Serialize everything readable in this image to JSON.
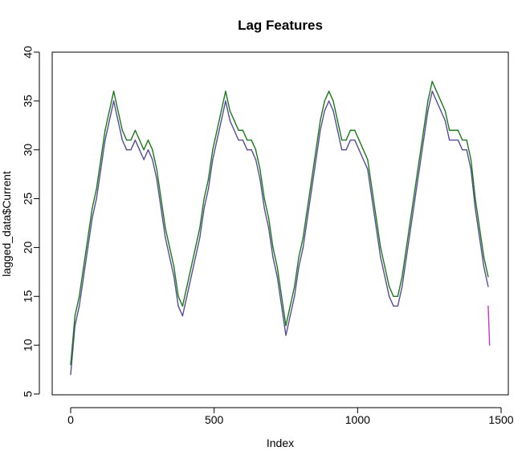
{
  "chart_data": {
    "type": "line",
    "title": "Lag Features",
    "xlabel": "Index",
    "ylabel": "lagged_data$Current",
    "xlim": [
      0,
      1500
    ],
    "ylim": [
      5,
      40
    ],
    "xticks": [
      0,
      500,
      1000,
      1500
    ],
    "yticks": [
      5,
      10,
      15,
      20,
      25,
      30,
      35,
      40
    ],
    "x_tick_labels": [
      "0",
      "500",
      "1000",
      "1500"
    ],
    "y_tick_labels": [
      "5",
      "10",
      "15",
      "20",
      "25",
      "30",
      "35",
      "40"
    ],
    "grid": false,
    "legend": "none",
    "colors": [
      "#5a4a9a",
      "#1a7a1a",
      "#cc33cc"
    ],
    "series": [
      {
        "color": "#5a4a9a",
        "x": [
          0,
          15,
          30,
          45,
          60,
          75,
          90,
          105,
          120,
          135,
          150,
          165,
          180,
          195,
          210,
          225,
          240,
          255,
          270,
          285,
          300,
          315,
          330,
          345,
          360,
          375,
          390,
          405,
          420,
          435,
          450,
          465,
          480,
          495,
          510,
          525,
          540,
          555,
          570,
          585,
          600,
          615,
          630,
          645,
          660,
          675,
          690,
          705,
          720,
          735,
          750,
          765,
          780,
          795,
          810,
          825,
          840,
          855,
          870,
          885,
          900,
          915,
          930,
          945,
          960,
          975,
          990,
          1005,
          1020,
          1035,
          1050,
          1065,
          1080,
          1095,
          1110,
          1125,
          1140,
          1155,
          1170,
          1185,
          1200,
          1215,
          1230,
          1245,
          1260,
          1275,
          1290,
          1305,
          1320,
          1335,
          1350,
          1365,
          1380,
          1395,
          1410,
          1425,
          1440,
          1455
        ],
        "values": [
          7,
          12,
          14,
          17,
          20,
          23,
          25,
          28,
          31,
          33,
          35,
          33,
          31,
          30,
          30,
          31,
          30,
          29,
          30,
          29,
          27,
          24,
          21,
          19,
          17,
          14,
          13,
          15,
          17,
          19,
          21,
          24,
          26,
          29,
          31,
          33,
          35,
          33,
          32,
          31,
          31,
          30,
          30,
          29,
          27,
          24,
          22,
          19,
          17,
          14,
          11,
          13,
          15,
          18,
          20,
          23,
          26,
          29,
          32,
          34,
          35,
          34,
          32,
          30,
          30,
          31,
          31,
          30,
          29,
          28,
          25,
          22,
          19,
          17,
          15,
          14,
          14,
          16,
          19,
          22,
          25,
          28,
          31,
          34,
          36,
          35,
          34,
          33,
          31,
          31,
          31,
          30,
          30,
          28,
          24,
          21,
          18,
          16
        ]
      },
      {
        "color": "#1a7a1a",
        "x": [
          0,
          15,
          30,
          45,
          60,
          75,
          90,
          105,
          120,
          135,
          150,
          165,
          180,
          195,
          210,
          225,
          240,
          255,
          270,
          285,
          300,
          315,
          330,
          345,
          360,
          375,
          390,
          405,
          420,
          435,
          450,
          465,
          480,
          495,
          510,
          525,
          540,
          555,
          570,
          585,
          600,
          615,
          630,
          645,
          660,
          675,
          690,
          705,
          720,
          735,
          750,
          765,
          780,
          795,
          810,
          825,
          840,
          855,
          870,
          885,
          900,
          915,
          930,
          945,
          960,
          975,
          990,
          1005,
          1020,
          1035,
          1050,
          1065,
          1080,
          1095,
          1110,
          1125,
          1140,
          1155,
          1170,
          1185,
          1200,
          1215,
          1230,
          1245,
          1260,
          1275,
          1290,
          1305,
          1320,
          1335,
          1350,
          1365,
          1380,
          1395,
          1410,
          1425,
          1440,
          1455
        ],
        "values": [
          8,
          13,
          15,
          18,
          21,
          24,
          26,
          29,
          32,
          34,
          36,
          34,
          32,
          31,
          31,
          32,
          31,
          30,
          31,
          30,
          28,
          25,
          22,
          20,
          18,
          15,
          14,
          16,
          18,
          20,
          22,
          25,
          27,
          30,
          32,
          34,
          36,
          34,
          33,
          32,
          32,
          31,
          31,
          30,
          28,
          25,
          23,
          20,
          18,
          15,
          12,
          14,
          16,
          19,
          21,
          24,
          27,
          30,
          33,
          35,
          36,
          35,
          33,
          31,
          31,
          32,
          32,
          31,
          30,
          29,
          26,
          23,
          20,
          18,
          16,
          15,
          15,
          17,
          20,
          23,
          26,
          29,
          32,
          35,
          37,
          36,
          35,
          34,
          32,
          32,
          32,
          31,
          31,
          29,
          25,
          22,
          19,
          17
        ]
      },
      {
        "color": "#cc33cc",
        "x": [
          1455,
          1460
        ],
        "values": [
          14,
          10
        ]
      }
    ]
  }
}
